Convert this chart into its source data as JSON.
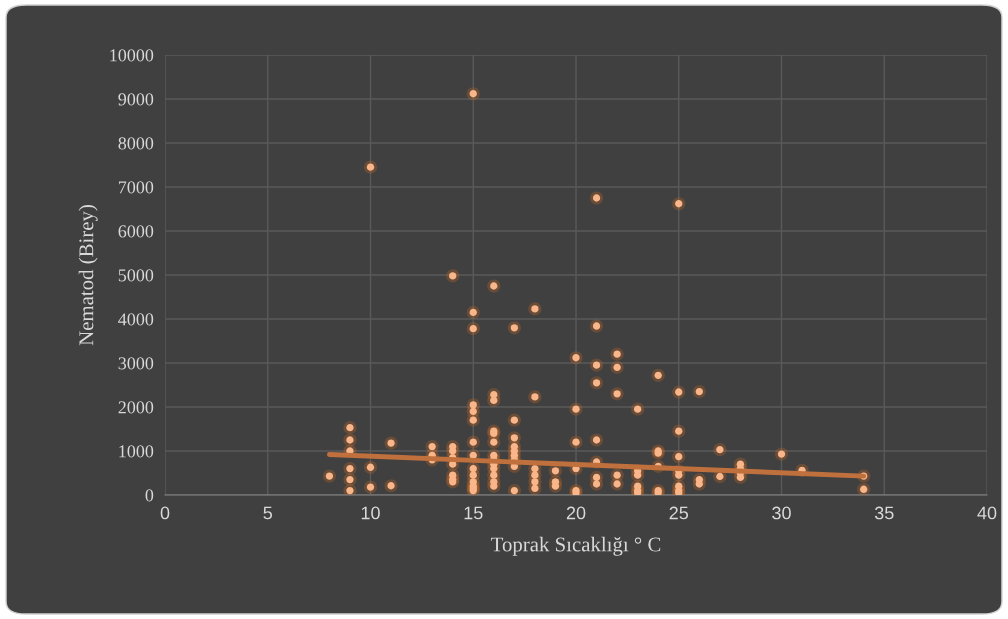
{
  "chart_data": {
    "type": "scatter",
    "xlabel": "Toprak Sıcaklığı ° C",
    "ylabel": "Nematod (Birey)",
    "xlim": [
      0,
      40
    ],
    "xticks": [
      0,
      5,
      10,
      15,
      20,
      25,
      30,
      35,
      40
    ],
    "ylim": [
      0,
      10000
    ],
    "yticks": [
      0,
      1000,
      2000,
      3000,
      4000,
      5000,
      6000,
      7000,
      8000,
      9000,
      10000
    ],
    "grid": true,
    "marker": "circle",
    "legend": false,
    "series": [
      {
        "color": "#f8b68a",
        "x": [
          8,
          9,
          9,
          9,
          9,
          9,
          9,
          10,
          10,
          10,
          11,
          11,
          13,
          13,
          13,
          14,
          14,
          14,
          14,
          14,
          14,
          14,
          14,
          15,
          15,
          15,
          15,
          15,
          15,
          15,
          15,
          15,
          15,
          15,
          15,
          15,
          15,
          16,
          16,
          16,
          16,
          16,
          16,
          16,
          16,
          16,
          16,
          16,
          16,
          16,
          17,
          17,
          17,
          17,
          17,
          17,
          17,
          17,
          17,
          18,
          18,
          18,
          18,
          18,
          18,
          19,
          19,
          19,
          20,
          20,
          20,
          20,
          20,
          20,
          21,
          21,
          21,
          21,
          21,
          21,
          21,
          21,
          22,
          22,
          22,
          22,
          22,
          23,
          23,
          23,
          23,
          23,
          23,
          24,
          24,
          24,
          24,
          24,
          24,
          25,
          25,
          25,
          25,
          25,
          25,
          25,
          25,
          25,
          26,
          26,
          26,
          27,
          27,
          28,
          28,
          28,
          28,
          30,
          31,
          34,
          34
        ],
        "values": [
          430,
          1530,
          1250,
          1000,
          600,
          350,
          100,
          7450,
          630,
          180,
          1180,
          210,
          1100,
          900,
          800,
          4980,
          1100,
          1000,
          850,
          700,
          450,
          350,
          300,
          9120,
          4150,
          3780,
          2050,
          1900,
          1700,
          1200,
          900,
          600,
          450,
          300,
          200,
          150,
          100,
          4750,
          2280,
          2150,
          1450,
          1400,
          1200,
          900,
          800,
          700,
          600,
          450,
          300,
          200,
          3800,
          1700,
          1300,
          1100,
          1000,
          900,
          800,
          650,
          100,
          4230,
          2230,
          600,
          450,
          300,
          150,
          550,
          300,
          200,
          3120,
          1950,
          1200,
          600,
          100,
          50,
          6750,
          3840,
          2950,
          2550,
          1250,
          750,
          400,
          250,
          3200,
          2900,
          2300,
          450,
          250,
          1950,
          550,
          450,
          200,
          100,
          50,
          2720,
          1000,
          950,
          650,
          100,
          50,
          6620,
          2340,
          1450,
          870,
          550,
          450,
          200,
          100,
          50,
          2350,
          350,
          250,
          1030,
          420,
          700,
          600,
          500,
          400,
          930,
          560,
          430,
          130
        ]
      },
      {
        "type": "line",
        "color": "#c0703d",
        "line_style": "solid",
        "x": [
          8,
          34
        ],
        "values": [
          920,
          430
        ]
      }
    ]
  }
}
